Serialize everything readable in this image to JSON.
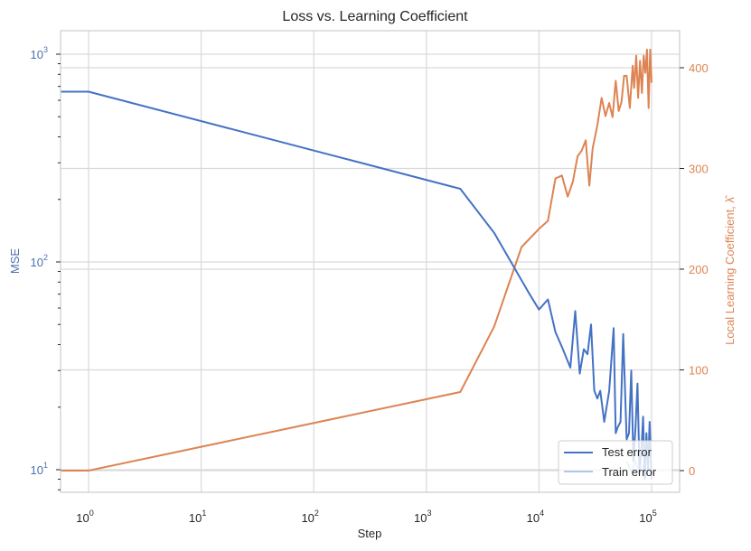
{
  "chart_data": {
    "type": "line",
    "title": "Loss vs. Learning Coefficient",
    "xlabel": "Step",
    "ylabel_left": "MSE",
    "ylabel_right": "Local Learning Coefficient, λ̂",
    "xscale": "log",
    "yscale_left": "log",
    "yscale_right": "linear",
    "xlim": [
      0.57,
      180000
    ],
    "ylim_left": [
      8,
      1350
    ],
    "ylim_right": [
      -20,
      458
    ],
    "x_ticks": [
      {
        "label": "10",
        "exp": "0",
        "value": 1
      },
      {
        "label": "10",
        "exp": "1",
        "value": 10
      },
      {
        "label": "10",
        "exp": "2",
        "value": 100
      },
      {
        "label": "10",
        "exp": "3",
        "value": 1000
      },
      {
        "label": "10",
        "exp": "4",
        "value": 10000
      },
      {
        "label": "10",
        "exp": "5",
        "value": 100000
      }
    ],
    "y_left_ticks": [
      {
        "label": "10",
        "exp": "1",
        "value": 10
      },
      {
        "label": "10",
        "exp": "2",
        "value": 100
      },
      {
        "label": "10",
        "exp": "3",
        "value": 1000
      }
    ],
    "y_right_ticks": [
      {
        "label": "0",
        "value": 0
      },
      {
        "label": "100",
        "value": 100
      },
      {
        "label": "200",
        "value": 200
      },
      {
        "label": "300",
        "value": 300
      },
      {
        "label": "400",
        "value": 400
      }
    ],
    "grid": true,
    "legend_position": "lower right",
    "colors": {
      "test_error": "#4472c4",
      "train_error": "#aec7e8",
      "llc": "#dd8452",
      "left_axis": "#4c72b0",
      "right_axis": "#dd8452",
      "grid": "#d9d9d9"
    },
    "series": [
      {
        "name": "Test error",
        "axis": "left",
        "x": [
          0.57,
          1,
          2000,
          4000,
          8000,
          10000,
          12000,
          14000,
          16000,
          19000,
          21000,
          23000,
          25000,
          27000,
          29000,
          31000,
          33000,
          35000,
          38000,
          42000,
          46000,
          48000,
          50000,
          53000,
          56000,
          60000,
          63000,
          66000,
          69000,
          72000,
          75000,
          78000,
          81000,
          84000,
          87000,
          90000,
          93000,
          96000,
          100000
        ],
        "y": [
          660,
          660,
          225,
          138,
          72,
          59,
          66,
          46,
          39,
          31,
          58,
          29,
          38,
          36,
          50,
          24,
          22,
          24,
          17,
          24,
          48,
          15,
          16,
          17,
          45,
          14,
          15,
          30,
          11,
          16,
          26,
          10,
          12,
          18,
          9,
          15,
          10,
          17,
          9
        ]
      },
      {
        "name": "Train error",
        "axis": "left",
        "x": [
          60000,
          66000,
          72000,
          78000,
          84000,
          90000,
          96000,
          100000
        ],
        "y": [
          11,
          9.8,
          11,
          9.5,
          10.5,
          9.4,
          10.2,
          9.6
        ]
      },
      {
        "name": "Local Learning Coefficient",
        "axis": "right",
        "x": [
          0.57,
          1,
          2000,
          4000,
          7000,
          10000,
          12000,
          14000,
          16000,
          18000,
          20000,
          22000,
          24000,
          26000,
          28000,
          30000,
          33000,
          36000,
          39000,
          42000,
          45000,
          48000,
          51000,
          54000,
          57000,
          60000,
          64000,
          68000,
          70000,
          73000,
          76000,
          79000,
          82000,
          85000,
          88000,
          91000,
          94000,
          97000,
          100000
        ],
        "y": [
          0,
          0,
          78,
          143,
          222,
          240,
          248,
          290,
          293,
          272,
          287,
          312,
          318,
          328,
          283,
          320,
          343,
          370,
          352,
          365,
          351,
          387,
          357,
          366,
          392,
          392,
          360,
          402,
          380,
          412,
          370,
          407,
          375,
          412,
          395,
          418,
          360,
          418,
          385
        ]
      }
    ]
  },
  "legend": {
    "items": [
      {
        "label": "Test error",
        "color": "#4472c4"
      },
      {
        "label": "Train error",
        "color": "#aec7e8"
      }
    ]
  }
}
